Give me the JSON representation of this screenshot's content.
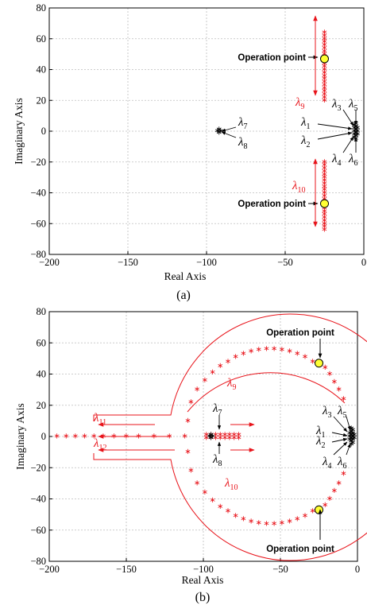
{
  "colors": {
    "red": "#e8141b",
    "black": "#000000",
    "yellow": "#ffff33",
    "grid": "#bdbdbd"
  },
  "chart_data": [
    {
      "panel_label": "(a)",
      "type": "scatter",
      "xlabel": "Real Axis",
      "ylabel": "Imaginary Axis",
      "xlim": [
        -200,
        0
      ],
      "ylim": [
        -80,
        80
      ],
      "x_ticks": [
        -200,
        -150,
        -100,
        -50,
        0
      ],
      "x_tick_labels": [
        "−200",
        "−150",
        "−100",
        "−50",
        "0"
      ],
      "y_ticks": [
        -80,
        -60,
        -40,
        -20,
        0,
        20,
        40,
        60,
        80
      ],
      "y_tick_labels": [
        "−80",
        "−60",
        "−40",
        "−20",
        "0",
        "20",
        "40",
        "60",
        "80"
      ],
      "grid": true,
      "series": [
        {
          "color": "red",
          "marker": "*",
          "points": [
            [
              -25,
              20
            ],
            [
              -25,
              22
            ],
            [
              -25,
              24
            ],
            [
              -25,
              26
            ],
            [
              -25,
              28
            ],
            [
              -25,
              30
            ],
            [
              -25,
              32
            ],
            [
              -25,
              34
            ],
            [
              -25,
              36
            ],
            [
              -25,
              38
            ],
            [
              -25,
              40
            ],
            [
              -25,
              42
            ],
            [
              -25,
              44
            ],
            [
              -25,
              46
            ],
            [
              -25,
              48
            ],
            [
              -25,
              50
            ],
            [
              -25,
              52
            ],
            [
              -25,
              54
            ],
            [
              -25,
              56
            ],
            [
              -25,
              58
            ],
            [
              -25,
              60
            ],
            [
              -25,
              62
            ],
            [
              -25,
              64
            ],
            [
              -25,
              -20
            ],
            [
              -25,
              -22
            ],
            [
              -25,
              -24
            ],
            [
              -25,
              -26
            ],
            [
              -25,
              -28
            ],
            [
              -25,
              -30
            ],
            [
              -25,
              -32
            ],
            [
              -25,
              -34
            ],
            [
              -25,
              -36
            ],
            [
              -25,
              -38
            ],
            [
              -25,
              -40
            ],
            [
              -25,
              -42
            ],
            [
              -25,
              -44
            ],
            [
              -25,
              -46
            ],
            [
              -25,
              -48
            ],
            [
              -25,
              -50
            ],
            [
              -25,
              -52
            ],
            [
              -25,
              -54
            ],
            [
              -25,
              -56
            ],
            [
              -25,
              -58
            ],
            [
              -25,
              -60
            ],
            [
              -25,
              -62
            ],
            [
              -25,
              -64
            ]
          ]
        },
        {
          "color": "black",
          "marker": "*",
          "points": [
            [
              -92,
              1
            ],
            [
              -92,
              -1
            ],
            [
              -91,
              0
            ],
            [
              -93,
              0
            ],
            [
              -5,
              5
            ],
            [
              -5,
              3
            ],
            [
              -5,
              1
            ],
            [
              -5,
              -1
            ],
            [
              -5,
              -3
            ],
            [
              -5,
              -5
            ],
            [
              -6,
              4
            ],
            [
              -6,
              2
            ],
            [
              -6,
              0
            ],
            [
              -6,
              -2
            ],
            [
              -6,
              -4
            ],
            [
              -4,
              2
            ],
            [
              -4,
              -2
            ],
            [
              -4,
              0
            ]
          ]
        }
      ],
      "operation_points": [
        [
          -25,
          47
        ],
        [
          -25,
          -47
        ]
      ],
      "annotations": [
        {
          "text": "Operation point"
        },
        {
          "text": "Operation point"
        }
      ],
      "labels": [
        {
          "sym": "λ",
          "sub": "9",
          "color": "red"
        },
        {
          "sym": "λ",
          "sub": "10",
          "color": "red"
        },
        {
          "sym": "λ",
          "sub": "7",
          "color": "black"
        },
        {
          "sym": "λ",
          "sub": "8",
          "color": "black"
        },
        {
          "sym": "λ",
          "sub": "1",
          "color": "black"
        },
        {
          "sym": "λ",
          "sub": "2",
          "color": "black"
        },
        {
          "sym": "λ",
          "sub": "3",
          "color": "black"
        },
        {
          "sym": "λ",
          "sub": "5",
          "color": "black"
        },
        {
          "sym": "λ",
          "sub": "4",
          "color": "black"
        },
        {
          "sym": "λ",
          "sub": "6",
          "color": "black"
        }
      ]
    },
    {
      "panel_label": "(b)",
      "type": "scatter",
      "xlabel": "Real Axis",
      "ylabel": "Imaginary Axis",
      "xlim": [
        -200,
        0
      ],
      "ylim": [
        -80,
        80
      ],
      "x_ticks": [
        -200,
        -150,
        -100,
        -50,
        0
      ],
      "x_tick_labels": [
        "−200",
        "−150",
        "−100",
        "−50",
        "0"
      ],
      "y_ticks": [
        -80,
        -60,
        -40,
        -20,
        0,
        20,
        40,
        60,
        80
      ],
      "y_tick_labels": [
        "−80",
        "−60",
        "−40",
        "−20",
        "0",
        "20",
        "40",
        "60",
        "80"
      ],
      "grid": true,
      "series": [
        {
          "color": "red",
          "marker": "*",
          "points": [
            [
              -195,
              0
            ],
            [
              -189,
              0
            ],
            [
              -183,
              0
            ],
            [
              -177,
              0
            ],
            [
              -171,
              0
            ],
            [
              -165,
              0
            ],
            [
              -158,
              0
            ],
            [
              -150,
              0
            ],
            [
              -142,
              0
            ],
            [
              -132,
              0
            ],
            [
              -122,
              0
            ],
            [
              -112,
              0
            ],
            [
              -108,
              22
            ],
            [
              -104,
              30
            ],
            [
              -99,
              36
            ],
            [
              -94,
              41
            ],
            [
              -89,
              45
            ],
            [
              -84,
              48
            ],
            [
              -79,
              51
            ],
            [
              -74,
              53
            ],
            [
              -69,
              54.5
            ],
            [
              -64,
              55.5
            ],
            [
              -59,
              56
            ],
            [
              -54,
              56
            ],
            [
              -49,
              55.5
            ],
            [
              -44,
              54.5
            ],
            [
              -39,
              53
            ],
            [
              -34,
              51
            ],
            [
              -29,
              48
            ],
            [
              -21,
              44
            ],
            [
              -18,
              40
            ],
            [
              -15,
              35
            ],
            [
              -12,
              30
            ],
            [
              -9,
              24
            ],
            [
              -108,
              -22
            ],
            [
              -104,
              -30
            ],
            [
              -99,
              -36
            ],
            [
              -94,
              -41
            ],
            [
              -89,
              -45
            ],
            [
              -84,
              -48
            ],
            [
              -79,
              -51
            ],
            [
              -74,
              -53
            ],
            [
              -69,
              -54.5
            ],
            [
              -64,
              -55.5
            ],
            [
              -59,
              -56
            ],
            [
              -54,
              -56
            ],
            [
              -49,
              -55.5
            ],
            [
              -44,
              -54.5
            ],
            [
              -39,
              -53
            ],
            [
              -34,
              -51
            ],
            [
              -29,
              -48
            ],
            [
              -21,
              -44
            ],
            [
              -18,
              -40
            ],
            [
              -15,
              -35
            ],
            [
              -12,
              -30
            ],
            [
              -9,
              -24
            ],
            [
              -98,
              1
            ],
            [
              -95,
              1
            ],
            [
              -92,
              1
            ],
            [
              -89,
              1
            ],
            [
              -86,
              1
            ],
            [
              -83,
              1
            ],
            [
              -80,
              1
            ],
            [
              -77,
              1
            ],
            [
              -98,
              -1
            ],
            [
              -95,
              -1
            ],
            [
              -92,
              -1
            ],
            [
              -89,
              -1
            ],
            [
              -86,
              -1
            ],
            [
              -83,
              -1
            ],
            [
              -80,
              -1
            ],
            [
              -77,
              -1
            ],
            [
              -110,
              10
            ],
            [
              -110,
              -10
            ]
          ]
        },
        {
          "color": "black",
          "marker": "*",
          "points": [
            [
              -95,
              1
            ],
            [
              -95,
              -1
            ],
            [
              -94,
              0
            ],
            [
              -96,
              0
            ],
            [
              -4,
              5
            ],
            [
              -4,
              3
            ],
            [
              -4,
              1
            ],
            [
              -4,
              -1
            ],
            [
              -4,
              -3
            ],
            [
              -4,
              -5
            ],
            [
              -3,
              4
            ],
            [
              -3,
              2
            ],
            [
              -3,
              0
            ],
            [
              -3,
              -2
            ],
            [
              -3,
              -4
            ],
            [
              -5,
              2
            ],
            [
              -5,
              -2
            ],
            [
              -5,
              0
            ],
            [
              -2,
              1
            ],
            [
              -2,
              -1
            ]
          ]
        }
      ],
      "operation_points": [
        [
          -25,
          47
        ],
        [
          -25,
          -47
        ]
      ],
      "annotations": [
        {
          "text": "Operation point"
        },
        {
          "text": "Operation point"
        }
      ],
      "labels": [
        {
          "sym": "λ",
          "sub": "9",
          "color": "red"
        },
        {
          "sym": "λ",
          "sub": "10",
          "color": "red"
        },
        {
          "sym": "λ",
          "sub": "11",
          "color": "red"
        },
        {
          "sym": "λ",
          "sub": "12",
          "color": "red"
        },
        {
          "sym": "λ",
          "sub": "7",
          "color": "black"
        },
        {
          "sym": "λ",
          "sub": "8",
          "color": "black"
        },
        {
          "sym": "λ",
          "sub": "1",
          "color": "black"
        },
        {
          "sym": "λ",
          "sub": "2",
          "color": "black"
        },
        {
          "sym": "λ",
          "sub": "3",
          "color": "black"
        },
        {
          "sym": "λ",
          "sub": "5",
          "color": "black"
        },
        {
          "sym": "λ",
          "sub": "4",
          "color": "black"
        },
        {
          "sym": "λ",
          "sub": "6",
          "color": "black"
        }
      ]
    }
  ]
}
